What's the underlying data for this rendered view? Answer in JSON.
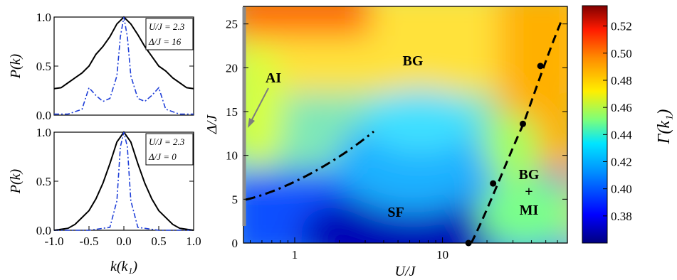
{
  "chart_data": [
    {
      "type": "line",
      "panel": "top-left",
      "ylabel": "P(k)",
      "xlabel": "",
      "xlim": [
        -1.0,
        1.0
      ],
      "ylim": [
        0.0,
        1.0
      ],
      "yticks": [
        "0.0",
        "0.5",
        "1.0"
      ],
      "annotation": [
        "U/J = 2.3",
        "Δ/J = 16"
      ],
      "series": [
        {
          "style": "solid",
          "color": "#000000",
          "x": [
            -1.0,
            -0.9,
            -0.8,
            -0.7,
            -0.6,
            -0.5,
            -0.4,
            -0.3,
            -0.2,
            -0.1,
            0.0,
            0.1,
            0.2,
            0.3,
            0.4,
            0.5,
            0.6,
            0.7,
            0.8,
            0.9,
            1.0
          ],
          "y": [
            0.27,
            0.28,
            0.33,
            0.38,
            0.43,
            0.5,
            0.62,
            0.7,
            0.8,
            0.93,
            1.0,
            0.93,
            0.82,
            0.7,
            0.6,
            0.5,
            0.45,
            0.38,
            0.33,
            0.28,
            0.27
          ]
        },
        {
          "style": "dashdot",
          "color": "#1f3fd8",
          "x": [
            -1.0,
            -0.8,
            -0.6,
            -0.5,
            -0.4,
            -0.3,
            -0.2,
            -0.1,
            -0.05,
            0.0,
            0.05,
            0.1,
            0.2,
            0.3,
            0.4,
            0.5,
            0.6,
            0.8,
            1.0
          ],
          "y": [
            0.01,
            0.01,
            0.06,
            0.28,
            0.2,
            0.14,
            0.17,
            0.4,
            0.8,
            1.0,
            0.8,
            0.4,
            0.17,
            0.14,
            0.2,
            0.28,
            0.06,
            0.01,
            0.01
          ]
        }
      ]
    },
    {
      "type": "line",
      "panel": "bottom-left",
      "ylabel": "P(k)",
      "xlabel": "k(k₁)",
      "xlim": [
        -1.0,
        1.0
      ],
      "ylim": [
        0.0,
        1.0
      ],
      "xticks": [
        "-1.0",
        "-0.5",
        "0.0",
        "0.5",
        "1.0"
      ],
      "yticks": [
        "0.0",
        "0.5",
        "1.0"
      ],
      "annotation": [
        "U/J = 2.3",
        "Δ/J = 0"
      ],
      "series": [
        {
          "style": "solid",
          "color": "#000000",
          "x": [
            -1.0,
            -0.9,
            -0.8,
            -0.7,
            -0.6,
            -0.5,
            -0.4,
            -0.3,
            -0.2,
            -0.1,
            0.0,
            0.1,
            0.2,
            0.3,
            0.4,
            0.5,
            0.6,
            0.7,
            0.8,
            0.9,
            1.0
          ],
          "y": [
            0.0,
            0.01,
            0.02,
            0.06,
            0.13,
            0.2,
            0.32,
            0.48,
            0.68,
            0.9,
            1.0,
            0.9,
            0.68,
            0.48,
            0.32,
            0.2,
            0.13,
            0.06,
            0.02,
            0.01,
            0.0
          ]
        },
        {
          "style": "dashdot",
          "color": "#1f3fd8",
          "x": [
            -1.0,
            -0.5,
            -0.2,
            -0.1,
            -0.05,
            0.0,
            0.05,
            0.1,
            0.2,
            0.5,
            1.0
          ],
          "y": [
            0.0,
            0.0,
            0.03,
            0.3,
            0.85,
            1.0,
            0.85,
            0.3,
            0.03,
            0.0,
            0.0
          ]
        }
      ]
    },
    {
      "type": "heatmap",
      "panel": "main",
      "xlabel": "U/J",
      "ylabel": "Δ/J",
      "x_scale": "log",
      "xlim": [
        0.45,
        70
      ],
      "ylim": [
        0,
        27
      ],
      "xticks": [
        "1",
        "10"
      ],
      "yticks": [
        "0",
        "5",
        "10",
        "15",
        "20",
        "25"
      ],
      "colorbar": {
        "label": "Γ(k₁)",
        "range": [
          0.36,
          0.535
        ],
        "ticks": [
          "0.52",
          "0.50",
          "0.48",
          "0.46",
          "0.44",
          "0.42",
          "0.40",
          "0.38"
        ]
      },
      "regions": [
        "BG",
        "SF",
        "BG",
        "+",
        "MI",
        "AI"
      ],
      "boundary_points": {
        "x": [
          15,
          22,
          35,
          46
        ],
        "y": [
          0,
          6.8,
          13.6,
          20.2
        ]
      }
    }
  ]
}
